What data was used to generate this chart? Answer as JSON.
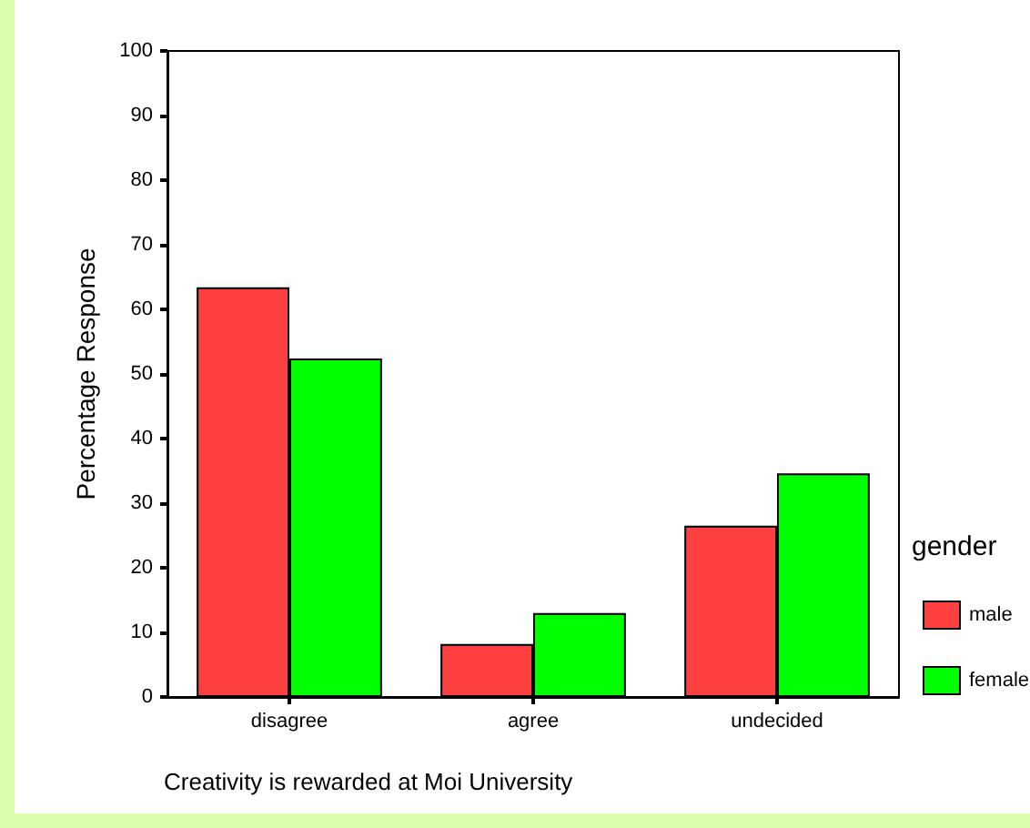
{
  "chart_data": {
    "type": "bar",
    "xlabel": "Creativity is rewarded at Moi University",
    "ylabel": "Percentage Response",
    "legend_title": "gender",
    "categories": [
      "disagree",
      "agree",
      "undecided"
    ],
    "series": [
      {
        "name": "male",
        "color": "#ff4040",
        "values": [
          63.4,
          8.2,
          26.5
        ]
      },
      {
        "name": "female",
        "color": "#00ff00",
        "values": [
          52.4,
          13.0,
          34.6
        ]
      }
    ],
    "ylim": [
      0,
      100
    ],
    "yticks": [
      0,
      10,
      20,
      30,
      40,
      50,
      60,
      70,
      80,
      90,
      100
    ],
    "grid": false,
    "legend": "right"
  }
}
